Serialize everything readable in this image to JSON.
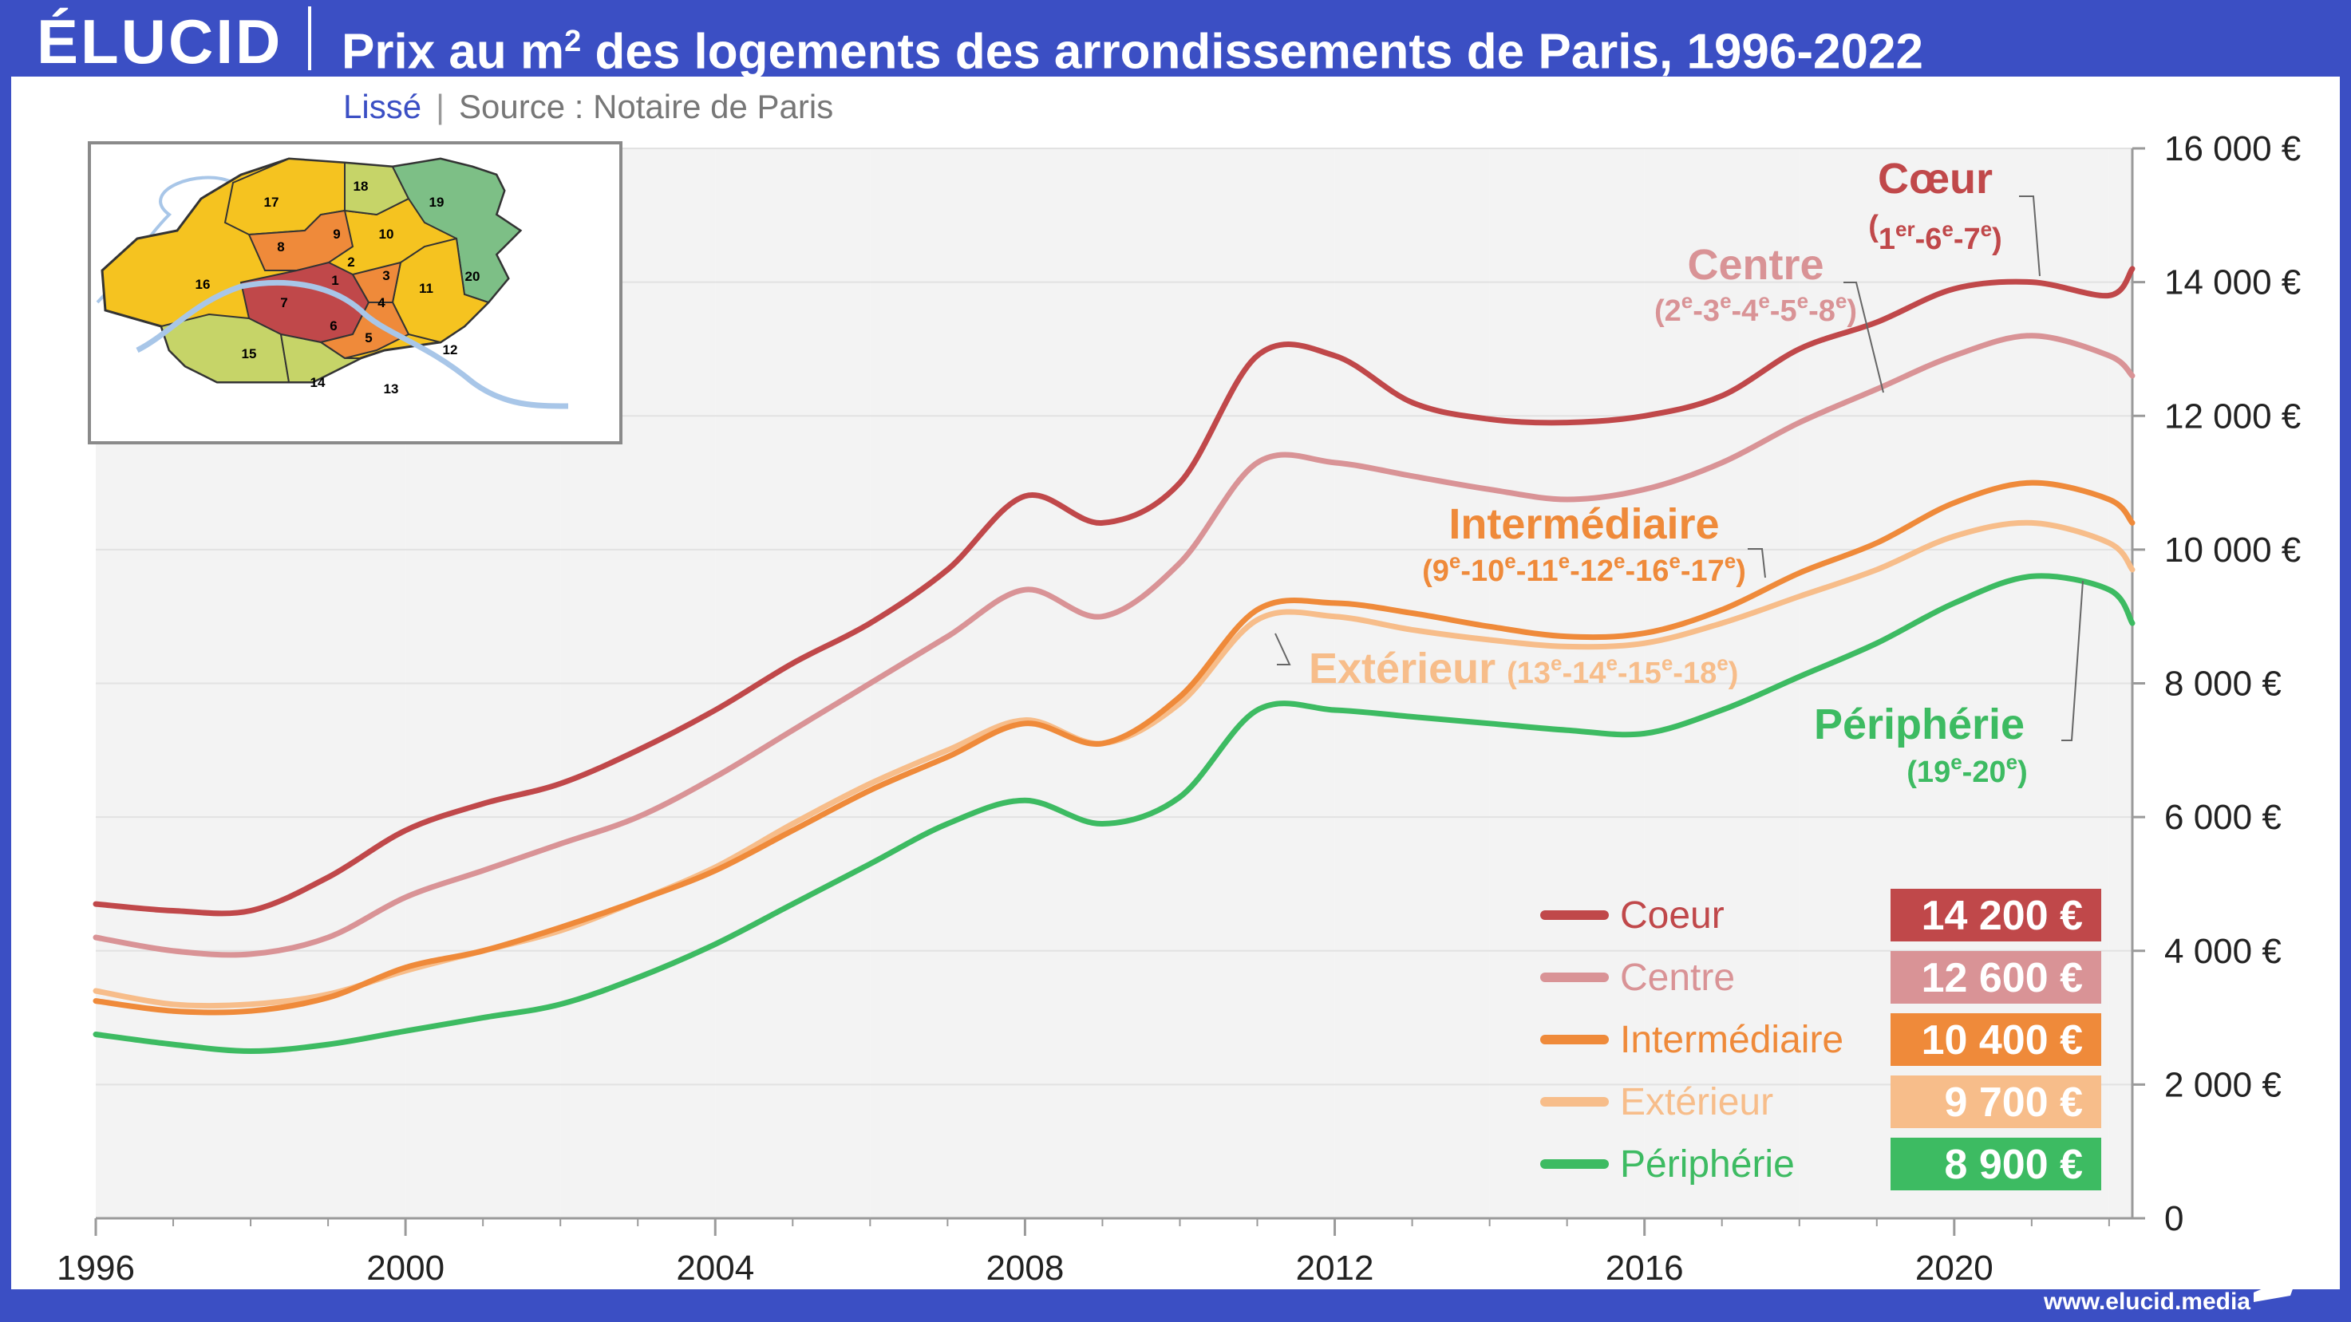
{
  "header": {
    "logo": "ÉLUCID",
    "title_pre": "Prix au m",
    "title_sup": "2",
    "title_post": " des logements des arrondissements de Paris, 1996-2022"
  },
  "subtitle": {
    "smoothed": "Lissé",
    "separator": "|",
    "source": "Source : Notaire de Paris"
  },
  "footer": {
    "url": "www.elucid.media"
  },
  "colors": {
    "brand": "#3b4fc4",
    "coeur": "#c0484a",
    "centre": "#d99396",
    "intermediaire": "#ef8a3a",
    "exterieur": "#f7bd8a",
    "peripherie": "#3dbb62"
  },
  "map": {
    "arrondissements": [
      "1",
      "2",
      "3",
      "4",
      "5",
      "6",
      "7",
      "8",
      "9",
      "10",
      "11",
      "12",
      "13",
      "14",
      "15",
      "16",
      "17",
      "18",
      "19",
      "20"
    ]
  },
  "chart_data": {
    "type": "line",
    "ylim": [
      0,
      16000
    ],
    "xlim": [
      1996,
      2022.3
    ],
    "x_ticks": [
      1996,
      2000,
      2004,
      2008,
      2012,
      2016,
      2020
    ],
    "y_ticks": [
      0,
      2000,
      4000,
      6000,
      8000,
      10000,
      12000,
      14000,
      16000
    ],
    "y_tick_labels": [
      "0",
      "2 000 €",
      "4 000 €",
      "6 000 €",
      "8 000 €",
      "10 000 €",
      "12 000 €",
      "14 000 €",
      "16 000 €"
    ],
    "x": [
      1996,
      1997,
      1998,
      1999,
      2000,
      2001,
      2002,
      2003,
      2004,
      2005,
      2006,
      2007,
      2008,
      2009,
      2010,
      2011,
      2012,
      2013,
      2014,
      2015,
      2016,
      2017,
      2018,
      2019,
      2020,
      2021,
      2022,
      2022.3
    ],
    "series": [
      {
        "name": "Coeur",
        "label_name": "Cœur",
        "label_detail": [
          "1",
          "er",
          "-6",
          "e",
          "-7",
          "e",
          ""
        ],
        "legend_value": "14 200 €",
        "values": [
          4700,
          4600,
          4600,
          5100,
          5800,
          6200,
          6500,
          7000,
          7600,
          8300,
          8900,
          9700,
          10800,
          10400,
          11000,
          12900,
          12900,
          12200,
          11950,
          11900,
          12000,
          12300,
          13000,
          13400,
          13900,
          14000,
          13800,
          14200
        ]
      },
      {
        "name": "Centre",
        "label_name": "Centre",
        "label_detail": [
          "(2",
          "e",
          "-3",
          "e",
          "-4",
          "e",
          "-5",
          "e",
          "-8",
          "e",
          ")"
        ],
        "legend_value": "12 600 €",
        "values": [
          4200,
          4000,
          3950,
          4200,
          4800,
          5200,
          5600,
          6000,
          6600,
          7300,
          8000,
          8700,
          9400,
          9000,
          9800,
          11300,
          11300,
          11100,
          10900,
          10750,
          10900,
          11300,
          11900,
          12400,
          12900,
          13200,
          12900,
          12600
        ]
      },
      {
        "name": "Intermédiaire",
        "label_name": "Intermédiaire",
        "label_detail": [
          "(9",
          "e",
          "-10",
          "e",
          "-11",
          "e",
          "-12",
          "e",
          "-16",
          "e",
          "-17",
          "e",
          ")"
        ],
        "legend_value": "10 400 €",
        "values": [
          3250,
          3100,
          3100,
          3300,
          3750,
          4000,
          4350,
          4750,
          5200,
          5800,
          6400,
          6900,
          7400,
          7100,
          7800,
          9100,
          9200,
          9050,
          8850,
          8700,
          8750,
          9100,
          9650,
          10100,
          10700,
          11000,
          10750,
          10400
        ]
      },
      {
        "name": "Extérieur",
        "label_name": "Extérieur",
        "label_detail": [
          "(13",
          "e",
          "-14",
          "e",
          "-15",
          "e",
          "-18",
          "e",
          ")"
        ],
        "legend_value": "9 700 €",
        "values": [
          3400,
          3200,
          3200,
          3350,
          3700,
          4000,
          4300,
          4750,
          5250,
          5900,
          6500,
          7000,
          7450,
          7100,
          7700,
          8950,
          9000,
          8800,
          8650,
          8550,
          8600,
          8900,
          9300,
          9700,
          10200,
          10400,
          10100,
          9700
        ]
      },
      {
        "name": "Périphérie",
        "label_name": "Périphérie",
        "label_detail": [
          "(19",
          "e",
          "-20",
          "e",
          ")"
        ],
        "legend_value": "8 900 €",
        "values": [
          2750,
          2600,
          2500,
          2600,
          2800,
          3000,
          3200,
          3600,
          4100,
          4700,
          5300,
          5900,
          6250,
          5900,
          6300,
          7600,
          7600,
          7500,
          7400,
          7300,
          7250,
          7600,
          8100,
          8600,
          9200,
          9600,
          9400,
          8900
        ]
      }
    ]
  }
}
